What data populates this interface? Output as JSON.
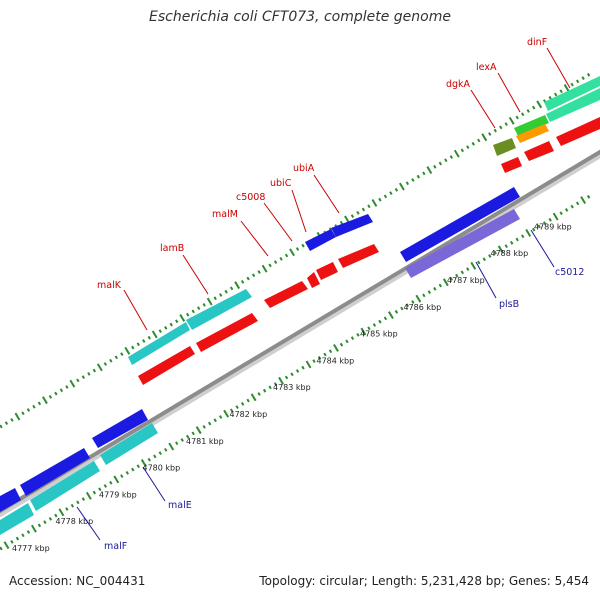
{
  "title": "Escherichia coli CFT073, complete genome",
  "footer": {
    "accession": "Accession: NC_004431",
    "summary": "Topology: circular; Length: 5,231,428 bp; Genes: 5,454"
  },
  "colors": {
    "backbone": "#8c8c8c",
    "tick": "#2e8b2e",
    "fwd_label": "#cc0000",
    "rev_label": "#1a1a99",
    "cyan": "#29c6c6",
    "red": "#ee1111",
    "blue": "#1a1ae0",
    "purple": "#7b68d8",
    "olive": "#6b8e23",
    "green": "#33cc33",
    "orange": "#ff9900",
    "mint": "#33e0a0"
  },
  "ticks": [
    "4777 kbp",
    "4778 kbp",
    "4779 kbp",
    "4780 kbp",
    "4781 kbp",
    "4782 kbp",
    "4783 kbp",
    "4784 kbp",
    "4785 kbp",
    "4786 kbp",
    "4787 kbp",
    "4788 kbp",
    "4789 kbp"
  ],
  "genes_forward": [
    "malK",
    "lamB",
    "malM",
    "c5008",
    "ubiC",
    "ubiA",
    "dgkA",
    "lexA",
    "dinF"
  ],
  "genes_reverse": [
    "malF",
    "malE",
    "plsB",
    "c5012"
  ]
}
